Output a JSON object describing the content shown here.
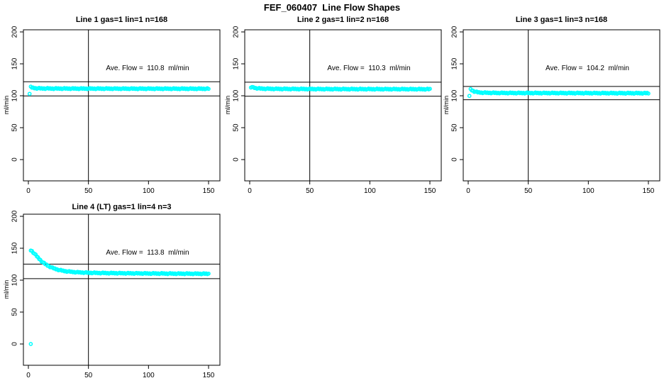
{
  "page": {
    "title": "FEF_060407  Line Flow Shapes"
  },
  "colors": {
    "points": "#00FFFF",
    "lines": "#000000",
    "background": "#FFFFFF",
    "text": "#000000"
  },
  "chart_data": [
    {
      "type": "scatter",
      "title": "Line 1 gas=1 lin=1 n=168",
      "n": 168,
      "annotation": "Ave. Flow =  110.8  ml/min",
      "ave_flow_ml_min": 110.8,
      "xlabel": "",
      "ylabel": "ml/min",
      "xticks": [
        0,
        50,
        100,
        150
      ],
      "yticks": [
        0,
        50,
        100,
        150,
        200
      ],
      "xlim": [
        -4,
        159
      ],
      "ylim": [
        -33,
        203
      ],
      "grid": false,
      "legend": false,
      "marker": "open-circle",
      "vline_x": 50,
      "hlines": [
        121.9,
        99.7
      ],
      "x_end": 150,
      "points": [
        [
          1,
          103
        ],
        [
          2,
          113.5
        ],
        [
          3,
          112.8
        ],
        [
          4,
          112.3
        ],
        [
          6,
          111.8
        ],
        [
          10,
          111.5
        ],
        [
          20,
          111.3
        ],
        [
          40,
          111.2
        ],
        [
          80,
          111.1
        ],
        [
          150,
          111
        ]
      ],
      "outliers": []
    },
    {
      "type": "scatter",
      "title": "Line 2 gas=1 lin=2 n=168",
      "n": 168,
      "annotation": "Ave. Flow =  110.3  ml/min",
      "ave_flow_ml_min": 110.3,
      "xlabel": "",
      "ylabel": "ml/min",
      "xticks": [
        0,
        50,
        100,
        150
      ],
      "yticks": [
        0,
        50,
        100,
        150,
        200
      ],
      "xlim": [
        -4,
        159
      ],
      "ylim": [
        -33,
        203
      ],
      "grid": false,
      "legend": false,
      "marker": "open-circle",
      "vline_x": 50,
      "hlines": [
        121.3,
        99.3
      ],
      "x_end": 150,
      "points": [
        [
          1,
          112
        ],
        [
          2,
          114
        ],
        [
          3,
          113
        ],
        [
          5,
          112
        ],
        [
          8,
          111.4
        ],
        [
          12,
          111
        ],
        [
          20,
          110.8
        ],
        [
          40,
          110.6
        ],
        [
          80,
          110.4
        ],
        [
          150,
          110.3
        ]
      ],
      "outliers": []
    },
    {
      "type": "scatter",
      "title": "Line 3 gas=1 lin=3 n=168",
      "n": 168,
      "annotation": "Ave. Flow =  104.2  ml/min",
      "ave_flow_ml_min": 104.2,
      "xlabel": "",
      "ylabel": "ml/min",
      "xticks": [
        0,
        50,
        100,
        150
      ],
      "yticks": [
        0,
        50,
        100,
        150,
        200
      ],
      "xlim": [
        -4,
        159
      ],
      "ylim": [
        -33,
        203
      ],
      "grid": false,
      "legend": false,
      "marker": "open-circle",
      "vline_x": 50,
      "hlines": [
        114.6,
        93.8
      ],
      "x_end": 150,
      "points": [
        [
          1,
          100
        ],
        [
          2,
          110
        ],
        [
          3,
          108.8
        ],
        [
          5,
          106.8
        ],
        [
          8,
          105.4
        ],
        [
          12,
          104.8
        ],
        [
          20,
          104.5
        ],
        [
          40,
          104.3
        ],
        [
          80,
          104.2
        ],
        [
          150,
          104
        ]
      ],
      "outliers": []
    },
    {
      "type": "scatter",
      "title": "Line 4 (LT) gas=1 lin=4 n=3",
      "n": 3,
      "annotation": "Ave. Flow =  113.8  ml/min",
      "ave_flow_ml_min": 113.8,
      "xlabel": "",
      "ylabel": "ml/min",
      "xticks": [
        0,
        50,
        100,
        150
      ],
      "yticks": [
        0,
        50,
        100,
        150,
        200
      ],
      "xlim": [
        -4,
        159
      ],
      "ylim": [
        -33,
        203
      ],
      "grid": false,
      "legend": false,
      "marker": "open-circle",
      "vline_x": 50,
      "hlines": [
        125.2,
        102.4
      ],
      "x_end": 150,
      "points": [
        [
          2,
          147
        ],
        [
          3,
          145.5
        ],
        [
          4,
          143.5
        ],
        [
          5,
          141.5
        ],
        [
          6,
          139.5
        ],
        [
          7,
          137.5
        ],
        [
          8,
          135.5
        ],
        [
          10,
          131.5
        ],
        [
          12,
          128
        ],
        [
          14,
          125.3
        ],
        [
          16,
          123
        ],
        [
          18,
          121
        ],
        [
          20,
          119.3
        ],
        [
          23,
          117.3
        ],
        [
          26,
          115.8
        ],
        [
          30,
          114.3
        ],
        [
          35,
          113.2
        ],
        [
          40,
          112.4
        ],
        [
          50,
          111.6
        ],
        [
          60,
          111.2
        ],
        [
          80,
          110.8
        ],
        [
          100,
          110.5
        ],
        [
          125,
          110.2
        ],
        [
          150,
          110
        ]
      ],
      "outliers": [
        [
          2,
          0
        ]
      ]
    }
  ]
}
